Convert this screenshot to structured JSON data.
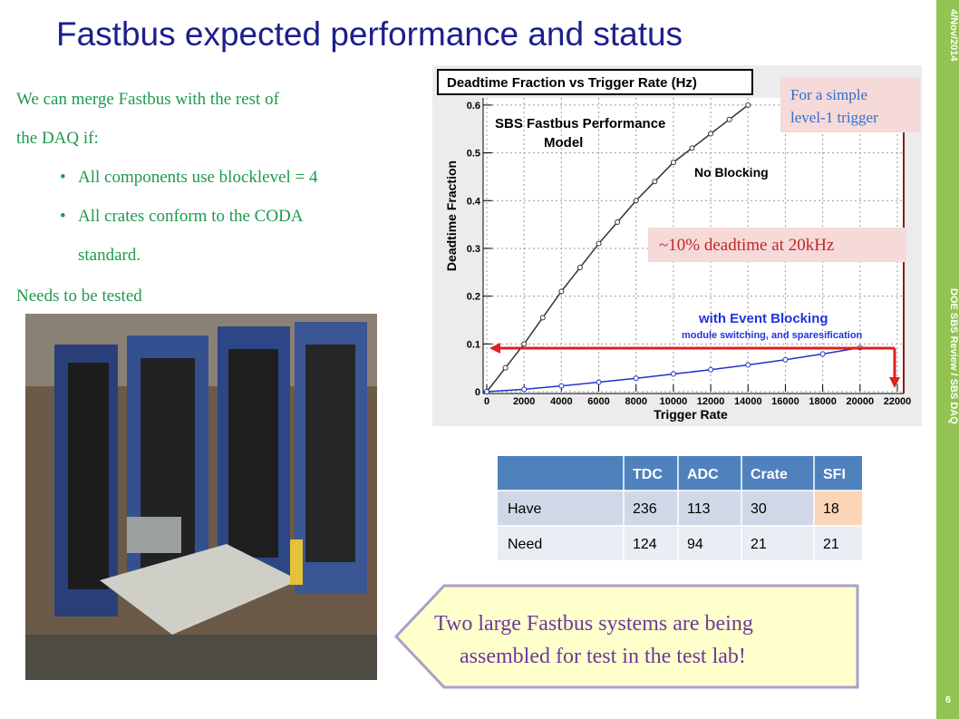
{
  "title": "Fastbus expected performance and status",
  "body": {
    "intro_lines": [
      "We  can  merge Fastbus  with  the  rest  of",
      "the DAQ  if:"
    ],
    "bullets": [
      [
        "All  components use blocklevel = 4"
      ],
      [
        "All  crates  conform to the  CODA",
        "standard."
      ]
    ],
    "footer": "Needs to be tested"
  },
  "chart_data": {
    "type": "scatter",
    "title": "Deadtime Fraction vs Trigger Rate (Hz)",
    "x_label": "Trigger Rate",
    "y_label": "Deadtime Fraction",
    "xlim": [
      0,
      22000
    ],
    "xticks": [
      0,
      2000,
      4000,
      6000,
      8000,
      10000,
      12000,
      14000,
      16000,
      18000,
      20000,
      22000
    ],
    "ylim": [
      0,
      0.615
    ],
    "yticks": [
      0,
      0.1,
      0.2,
      0.3,
      0.4,
      0.5,
      0.6
    ],
    "grid": true,
    "annotation_model": [
      "SBS  Fastbus  Performance",
      "Model"
    ],
    "annotation_blocking_sub": "module switching, and sparesification",
    "series": [
      {
        "name": "No Blocking",
        "color": "#333333",
        "x": [
          0,
          1000,
          2000,
          3000,
          4000,
          5000,
          6000,
          7000,
          8000,
          9000,
          10000,
          11000,
          12000,
          13000,
          14000
        ],
        "values": [
          0,
          0.05,
          0.1,
          0.155,
          0.21,
          0.26,
          0.31,
          0.355,
          0.4,
          0.44,
          0.48,
          0.51,
          0.54,
          0.57,
          0.6
        ]
      },
      {
        "name": "with Event Blocking",
        "color": "#2233cc",
        "x": [
          0,
          2000,
          4000,
          6000,
          8000,
          10000,
          12000,
          14000,
          16000,
          18000,
          20000
        ],
        "values": [
          0,
          0.005,
          0.012,
          0.02,
          0.028,
          0.037,
          0.046,
          0.056,
          0.067,
          0.079,
          0.092
        ]
      }
    ]
  },
  "callouts": {
    "trigger": [
      "For  a  simple",
      "level-1  trigger"
    ],
    "deadtime": "~10%  deadtime  at  20kHz",
    "bottom": [
      "Two large Fastbus systems are being",
      "assembled  for  test in the  test  lab!"
    ]
  },
  "table": {
    "header": [
      "TDC",
      "ADC",
      "Crate",
      "SFI"
    ],
    "rows": [
      {
        "label": "Have",
        "cells": [
          236,
          113,
          30,
          18
        ]
      },
      {
        "label": "Need",
        "cells": [
          124,
          94,
          21,
          21
        ]
      }
    ]
  },
  "sidebar": {
    "date": "4/Nov/2014",
    "event": "DOE SBS Review / SBS DAQ",
    "page": "6"
  }
}
